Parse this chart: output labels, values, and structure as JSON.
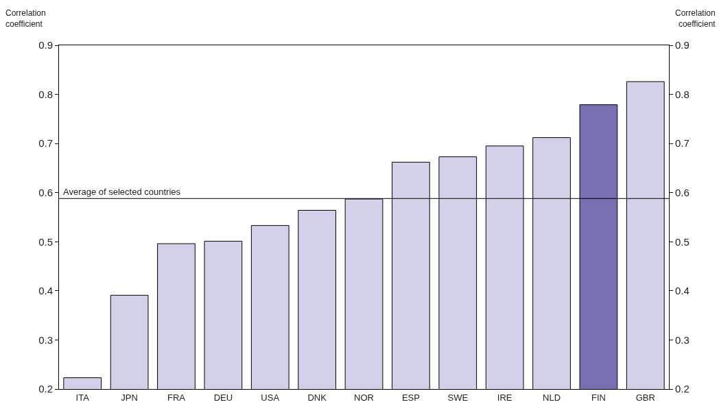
{
  "chart_data": {
    "type": "bar",
    "ylabel": "Correlation\ncoefficient",
    "y2label": "Correlation\ncoefficient",
    "categories": [
      "ITA",
      "JPN",
      "FRA",
      "DEU",
      "USA",
      "DNK",
      "NOR",
      "ESP",
      "SWE",
      "IRE",
      "NLD",
      "FIN",
      "GBR"
    ],
    "values": [
      0.223,
      0.391,
      0.496,
      0.501,
      0.533,
      0.564,
      0.587,
      0.662,
      0.673,
      0.695,
      0.712,
      0.779,
      0.826
    ],
    "colors": [
      "#d3d1ea",
      "#d3d1ea",
      "#d3d1ea",
      "#d3d1ea",
      "#d3d1ea",
      "#d3d1ea",
      "#d3d1ea",
      "#d3d1ea",
      "#d3d1ea",
      "#d3d1ea",
      "#d3d1ea",
      "#7670b2",
      "#d3d1ea"
    ],
    "ylim": [
      0.2,
      0.9
    ],
    "yticks": [
      0.2,
      0.3,
      0.4,
      0.5,
      0.6,
      0.7,
      0.8,
      0.9
    ],
    "y2lim": [
      0.2,
      0.9
    ],
    "y2ticks": [
      0.2,
      0.3,
      0.4,
      0.5,
      0.6,
      0.7,
      0.8,
      0.9
    ],
    "ref_lines": [
      {
        "axis": "y",
        "value": 0.588,
        "label": "Average of selected countries",
        "color": "#000000"
      }
    ]
  }
}
